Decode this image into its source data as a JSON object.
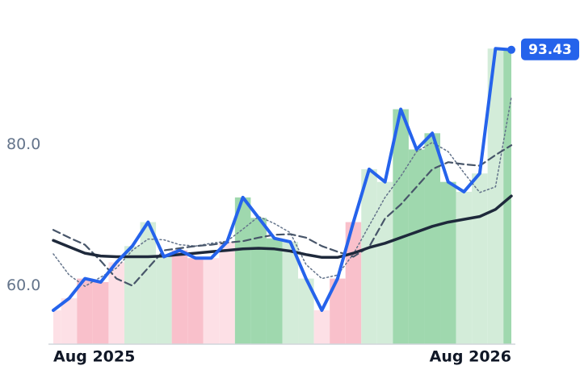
{
  "chart_data": {
    "type": "line",
    "categories": [
      "Aug 2025",
      null,
      null,
      null,
      null,
      null,
      null,
      null,
      null,
      null,
      null,
      null,
      null,
      null,
      null,
      null,
      null,
      null,
      null,
      null,
      null,
      null,
      null,
      null,
      null,
      null,
      null,
      null,
      null,
      "Aug 2026"
    ],
    "series": [
      {
        "color": "#2563eb",
        "width": 4,
        "style": "solid",
        "bars": true,
        "values": [
          56.5,
          58.2,
          61,
          60.5,
          63.3,
          65.6,
          69,
          64.1,
          65,
          63.9,
          63.9,
          66.2,
          72.5,
          69.6,
          66.7,
          66.2,
          61,
          56.5,
          61,
          69,
          76.5,
          74.7,
          85,
          79.3,
          81.6,
          74.7,
          73.3,
          75.9,
          93.6,
          93.43
        ],
        "band_colors": [
          "#fde0e6",
          "#fde0e6",
          "#f9c0cb",
          "#f9c0cb",
          "#fde0e6",
          "#d3ecd9",
          "#d3ecd9",
          "#d3ecd9",
          "#f9c0cb",
          "#f9c0cb",
          "#fde0e6",
          "#fde0e6",
          "#9fd8ae",
          "#9fd8ae",
          "#9fd8ae",
          "#d3ecd9",
          "#d3ecd9",
          "#fde0e6",
          "#f9c0cb",
          "#f9c0cb",
          "#d3ecd9",
          "#d3ecd9",
          "#9fd8ae",
          "#9fd8ae",
          "#9fd8ae",
          "#9fd8ae",
          "#d3ecd9",
          "#d3ecd9",
          "#d3ecd9",
          "#9fd8ae"
        ]
      },
      {
        "color": "#64748b",
        "width": 1.5,
        "style": "dotted",
        "values": [
          64.5,
          61.5,
          59.9,
          61.2,
          62.5,
          65,
          66.6,
          66.5,
          65.8,
          65.6,
          66,
          66.3,
          68,
          69.8,
          68.8,
          67.5,
          63,
          61,
          61.5,
          64.5,
          68.5,
          72.5,
          75.5,
          79,
          80.3,
          79,
          76,
          73.2,
          74,
          86.7
        ]
      },
      {
        "color": "#475569",
        "width": 2.2,
        "style": "dashed",
        "values": [
          67.9,
          66.8,
          65.8,
          63.5,
          61,
          60,
          62.5,
          65,
          65.3,
          65.6,
          65.8,
          66.1,
          66.3,
          66.8,
          67.2,
          67.3,
          66.8,
          65.6,
          64.8,
          64.1,
          65.5,
          69.5,
          71.5,
          74,
          76.5,
          77.5,
          77.2,
          77,
          78.5,
          79.9
        ]
      },
      {
        "color": "#1e293b",
        "width": 3.5,
        "style": "solid",
        "values": [
          66.4,
          65.5,
          64.6,
          64.2,
          64.1,
          64.1,
          64.1,
          64.2,
          64.4,
          64.6,
          64.8,
          65,
          65.2,
          65.3,
          65.2,
          64.9,
          64.4,
          64,
          64,
          64.6,
          65.4,
          66,
          66.8,
          67.6,
          68.4,
          69,
          69.4,
          69.8,
          70.8,
          72.7
        ]
      }
    ],
    "ylim": [
      51.7,
      98.2
    ],
    "yticks": [
      {
        "value": 60,
        "label": "60.0"
      },
      {
        "value": 80,
        "label": "80.0"
      }
    ],
    "last_value_badge_color": "#2563eb"
  }
}
